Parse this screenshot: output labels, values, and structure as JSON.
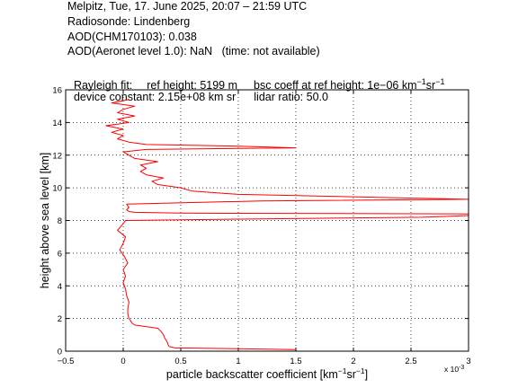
{
  "header": {
    "line1": "Melpitz, Tue, 17. June 2025, 20:07 – 21:59 UTC",
    "line2": "Radiosonde: Lindenberg",
    "line3": "AOD(CHM170103): 0.038",
    "line4": "AOD(Aeronet level 1.0): NaN   (time: not available)",
    "line5": {
      "a": "Rayleigh fit:",
      "b": "ref height: 5199 m",
      "c": "bsc coeff at ref height: 1e−06 km",
      "c_sup1": "−1",
      "c_mid": "sr",
      "c_sup2": "−1"
    },
    "line6": {
      "a": "device constant: 2.15e+08 km sr",
      "b": "lidar ratio: 50.0"
    }
  },
  "chart_data": {
    "type": "line",
    "xlabel": "particle backscatter coefficient [km",
    "xlabel_sup1": "−1",
    "xlabel_mid": "sr",
    "xlabel_sup2": "−1",
    "xlabel_end": "]",
    "ylabel": "height above sea level [km]",
    "x_multiplier": "x 10",
    "x_multiplier_exp": "-3",
    "xlim": [
      -0.5,
      3.0
    ],
    "ylim": [
      0,
      16
    ],
    "xticks": [
      -0.5,
      0,
      0.5,
      1,
      1.5,
      2,
      2.5,
      3
    ],
    "xtick_labels": [
      "−0.5",
      "0",
      "0.5",
      "1",
      "1.5",
      "2",
      "2.5",
      "3"
    ],
    "yticks": [
      0,
      2,
      4,
      6,
      8,
      10,
      12,
      14,
      16
    ],
    "ytick_labels": [
      "0",
      "2",
      "4",
      "6",
      "8",
      "10",
      "12",
      "14",
      "16"
    ],
    "grid": true,
    "grid_style": "dotted",
    "line_color": "#ff0000",
    "series": [
      {
        "y": [
          0.1,
          0.15,
          0.2,
          0.28,
          0.4,
          0.6,
          0.8,
          1.0,
          1.2,
          1.4,
          1.6,
          1.7,
          1.8,
          2.0,
          2.3,
          2.6,
          3.0,
          3.4,
          3.8,
          4.2,
          4.6,
          5.0,
          5.4,
          5.8,
          6.2,
          6.6,
          7.0,
          7.4,
          7.8,
          8.0,
          8.1,
          8.2,
          8.3,
          8.4,
          8.45,
          8.5,
          8.55,
          8.65,
          8.8,
          9.0,
          9.2,
          9.3,
          9.4,
          9.6,
          9.8,
          10.0,
          10.1,
          10.2,
          10.4,
          10.6,
          10.8,
          11.0,
          11.2,
          11.4,
          11.6,
          11.8,
          12.0,
          12.2,
          12.35,
          12.45,
          12.55,
          12.65,
          12.8,
          13.0,
          13.2,
          13.4,
          13.6,
          13.8,
          14.0,
          14.2,
          14.4,
          14.6,
          14.8,
          15.0,
          15.2,
          15.4
        ],
        "x": [
          1.5,
          1.0,
          0.45,
          0.4,
          0.39,
          0.38,
          0.36,
          0.35,
          0.33,
          0.3,
          0.1,
          0.08,
          0.07,
          0.05,
          0.04,
          0.04,
          0.05,
          0.03,
          0.02,
          0.0,
          0.02,
          0.0,
          0.04,
          0.01,
          -0.03,
          0.0,
          0.02,
          -0.05,
          0.0,
          0.02,
          1.2,
          2.6,
          3.0,
          3.0,
          0.5,
          0.1,
          0.05,
          0.03,
          0.05,
          0.03,
          1.2,
          3.0,
          2.3,
          1.0,
          0.6,
          0.5,
          0.4,
          0.3,
          0.25,
          0.35,
          0.2,
          0.15,
          0.2,
          0.15,
          0.3,
          0.1,
          0.05,
          0.0,
          0.2,
          1.5,
          1.0,
          0.2,
          0.05,
          -0.05,
          0.0,
          -0.1,
          0.0,
          -0.15,
          0.05,
          -0.05,
          0.1,
          -0.05,
          0.0,
          0.1,
          -0.1,
          0.05
        ]
      }
    ]
  }
}
